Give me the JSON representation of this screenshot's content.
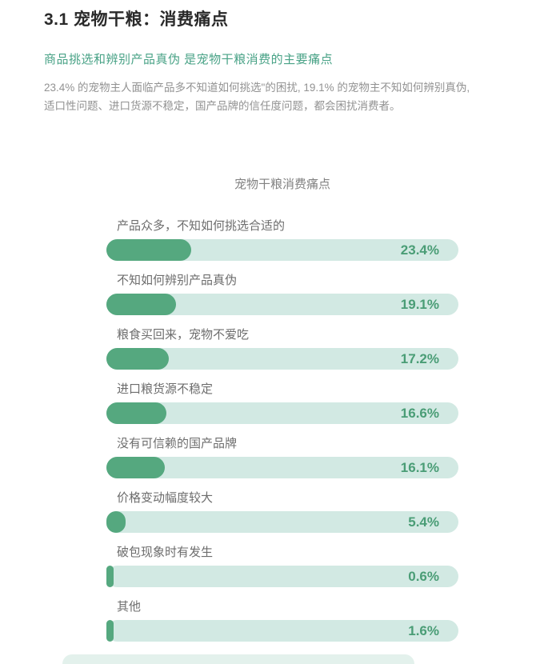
{
  "page": {
    "section_title": "3.1 宠物干粮：消费痛点",
    "subtitle": "商品挑选和辨别产品真伪 是宠物干粮消费的主要痛点",
    "body_lines": {
      "line1": "23.4% 的宠物主人面临产品多不知道如何挑选\"的困扰, 19.1% 的宠物主不知如何辨别真伪,",
      "line2": "适口性问题、进口货源不稳定，国产品牌的信任度问题，都会困扰消费者。"
    }
  },
  "colors": {
    "heading_text": "#2a2a2a",
    "subtitle_green": "#48a286",
    "body_gray": "#929292",
    "chart_title_gray": "#828282",
    "label_gray": "#6d6d6d",
    "bar_track": "#d2e9e3",
    "bar_track_faint": "#e3f1ec",
    "bar_fill": "#55a87f",
    "value_green": "#4a9d76"
  },
  "chart_data": {
    "type": "bar",
    "orientation": "horizontal",
    "title": "宠物干粮消费痛点",
    "categories": [
      "产品众多，不知如何挑选合适的",
      "不知如何辨别产品真伪",
      "粮食买回来，宠物不爱吃",
      "进口粮货源不稳定",
      "没有可信赖的国产品牌",
      "价格变动幅度较大",
      "破包现象时有发生",
      "其他"
    ],
    "values": [
      23.4,
      19.1,
      17.2,
      16.6,
      16.1,
      5.4,
      0.6,
      1.6
    ],
    "display_values": [
      "23.4%",
      "19.1%",
      "17.2%",
      "16.6%",
      "16.1%",
      "5.4%",
      "0.6%",
      "1.6%"
    ],
    "unit": "%",
    "axis_max": 97,
    "grid": false,
    "legend": false,
    "value_label_position": "inside-right"
  }
}
